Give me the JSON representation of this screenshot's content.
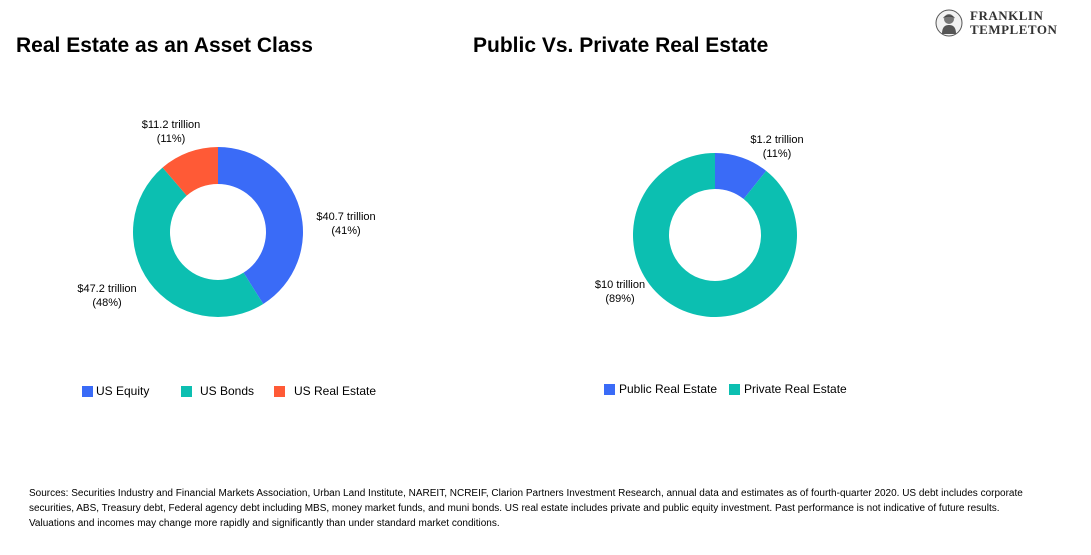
{
  "logo": {
    "line1": "FRANKLIN",
    "line2": "TEMPLETON"
  },
  "chart_data": [
    {
      "type": "pie",
      "title": "Real Estate as an Asset Class",
      "legend_position": "bottom",
      "slices": [
        {
          "name": "US Equity",
          "value": 40.7,
          "percent": 41,
          "label": "$40.7 trillion",
          "pct_label": "(41%)",
          "color": "#3A6BF7"
        },
        {
          "name": "US Bonds",
          "value": 47.2,
          "percent": 48,
          "label": "$47.2 trillion",
          "pct_label": "(48%)",
          "color": "#0CBFB1"
        },
        {
          "name": "US Real Estate",
          "value": 11.2,
          "percent": 11,
          "label": "$11.2 trillion",
          "pct_label": "(11%)",
          "color": "#FF5A36"
        }
      ]
    },
    {
      "type": "pie",
      "title": "Public Vs. Private Real Estate",
      "legend_position": "bottom",
      "slices": [
        {
          "name": "Public Real Estate",
          "value": 1.2,
          "percent": 11,
          "label": "$1.2 trillion",
          "pct_label": "(11%)",
          "color": "#3A6BF7"
        },
        {
          "name": "Private Real Estate",
          "value": 10,
          "percent": 89,
          "label": "$10 trillion",
          "pct_label": "(89%)",
          "color": "#0CBFB1"
        }
      ]
    }
  ],
  "footnote": "Sources: Securities Industry and Financial Markets Association, Urban Land Institute, NAREIT, NCREIF, Clarion Partners Investment Research, annual data and estimates as of fourth-quarter 2020. US debt includes corporate securities, ABS, Treasury debt, Federal agency debt including MBS, money market funds, and muni bonds. US real estate includes private and public equity investment. Past performance is not indicative of future results. Valuations and incomes may change more rapidly and significantly than under standard market conditions."
}
